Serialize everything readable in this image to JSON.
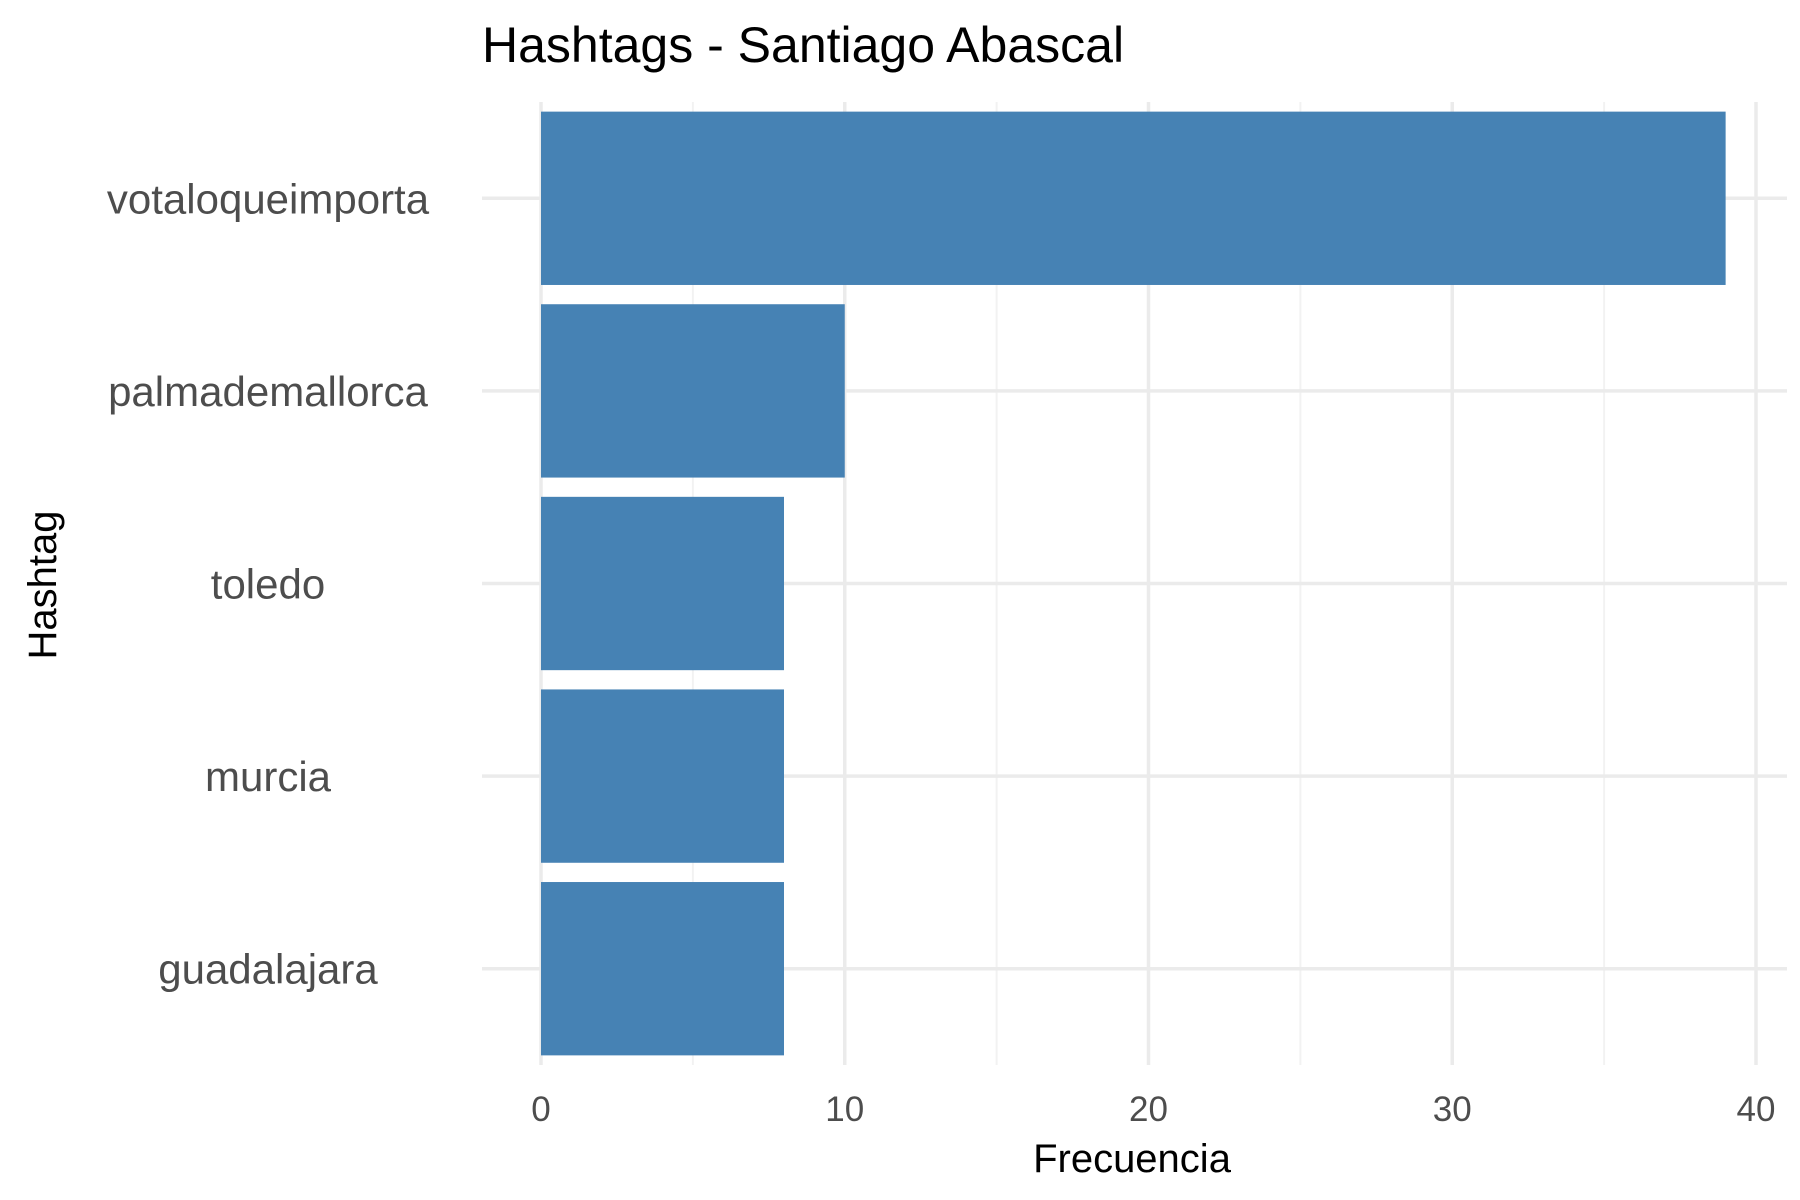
{
  "chart_data": {
    "type": "bar",
    "orientation": "horizontal",
    "title": "Hashtags - Santiago Abascal",
    "xlabel": "Frecuencia",
    "ylabel": "Hashtag",
    "categories": [
      "votaloqueimporta",
      "palmademallorca",
      "toledo",
      "murcia",
      "guadalajara"
    ],
    "values": [
      39,
      10,
      8,
      8,
      8
    ],
    "xlim": [
      0,
      41
    ],
    "x_ticks": [
      0,
      10,
      20,
      30,
      40
    ],
    "x_minor_ticks": [
      5,
      15,
      25,
      35
    ],
    "bar_color": "#4682b4",
    "grid": true,
    "legend": "none"
  }
}
